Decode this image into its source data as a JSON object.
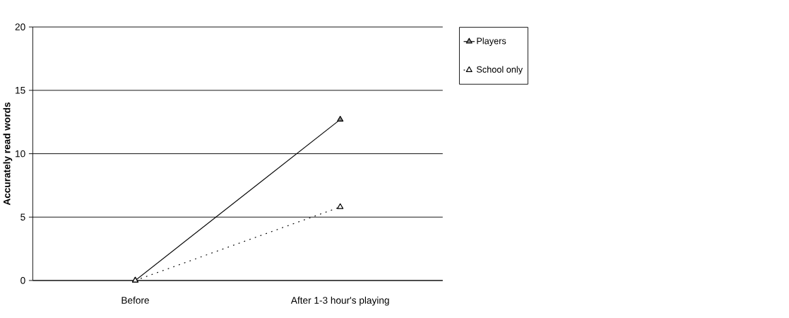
{
  "chart_data": {
    "type": "line",
    "ylabel": "Accurately read words",
    "categories": [
      "Before",
      "After 1-3 hour's playing"
    ],
    "series": [
      {
        "name": "Players",
        "color": "#000000",
        "values": [
          0,
          12.7
        ],
        "line_style": "solid"
      },
      {
        "name": "School only",
        "color": "#000000",
        "values": [
          0,
          5.8
        ],
        "line_style": "dotted"
      }
    ],
    "ylim": [
      0,
      20
    ],
    "yticks": [
      0,
      5,
      10,
      15,
      20
    ],
    "grid": "y",
    "legend": "top right",
    "marker": "triangle"
  }
}
